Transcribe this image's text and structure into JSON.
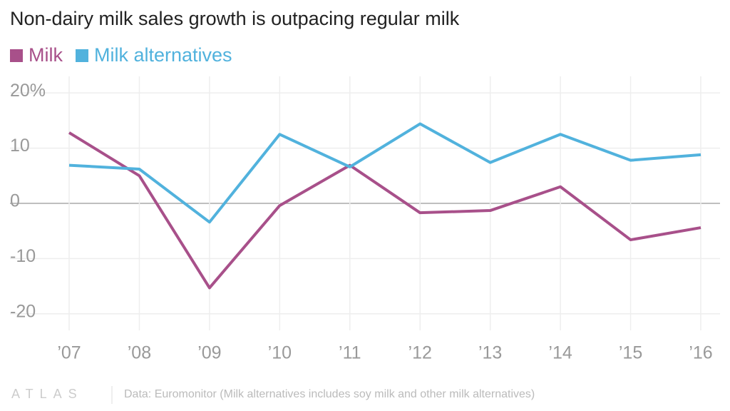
{
  "chart_data": {
    "type": "line",
    "title": "Non-dairy milk sales growth is outpacing regular milk",
    "categories": [
      "’07",
      "’08",
      "’09",
      "’10",
      "’11",
      "’12",
      "’13",
      "’14",
      "’15",
      "’16"
    ],
    "series": [
      {
        "name": "Milk",
        "color": "#a8508a",
        "values": [
          12.8,
          5.0,
          -15.3,
          -0.4,
          6.9,
          -1.7,
          -1.3,
          3.0,
          -6.6,
          -4.4
        ]
      },
      {
        "name": "Milk alternatives",
        "color": "#51b2dd",
        "values": [
          6.9,
          6.2,
          -3.4,
          12.5,
          6.6,
          14.4,
          7.4,
          12.5,
          7.8,
          8.8
        ]
      }
    ],
    "ylim": [
      -23,
      23
    ],
    "yticks": [
      {
        "value": 20,
        "label": "20%"
      },
      10,
      0,
      -10,
      -20
    ],
    "grid": true,
    "legend": "top-left",
    "logo": "ATLAS",
    "source": "Data: Euromonitor (Milk alternatives includes soy milk and other milk alternatives)"
  }
}
